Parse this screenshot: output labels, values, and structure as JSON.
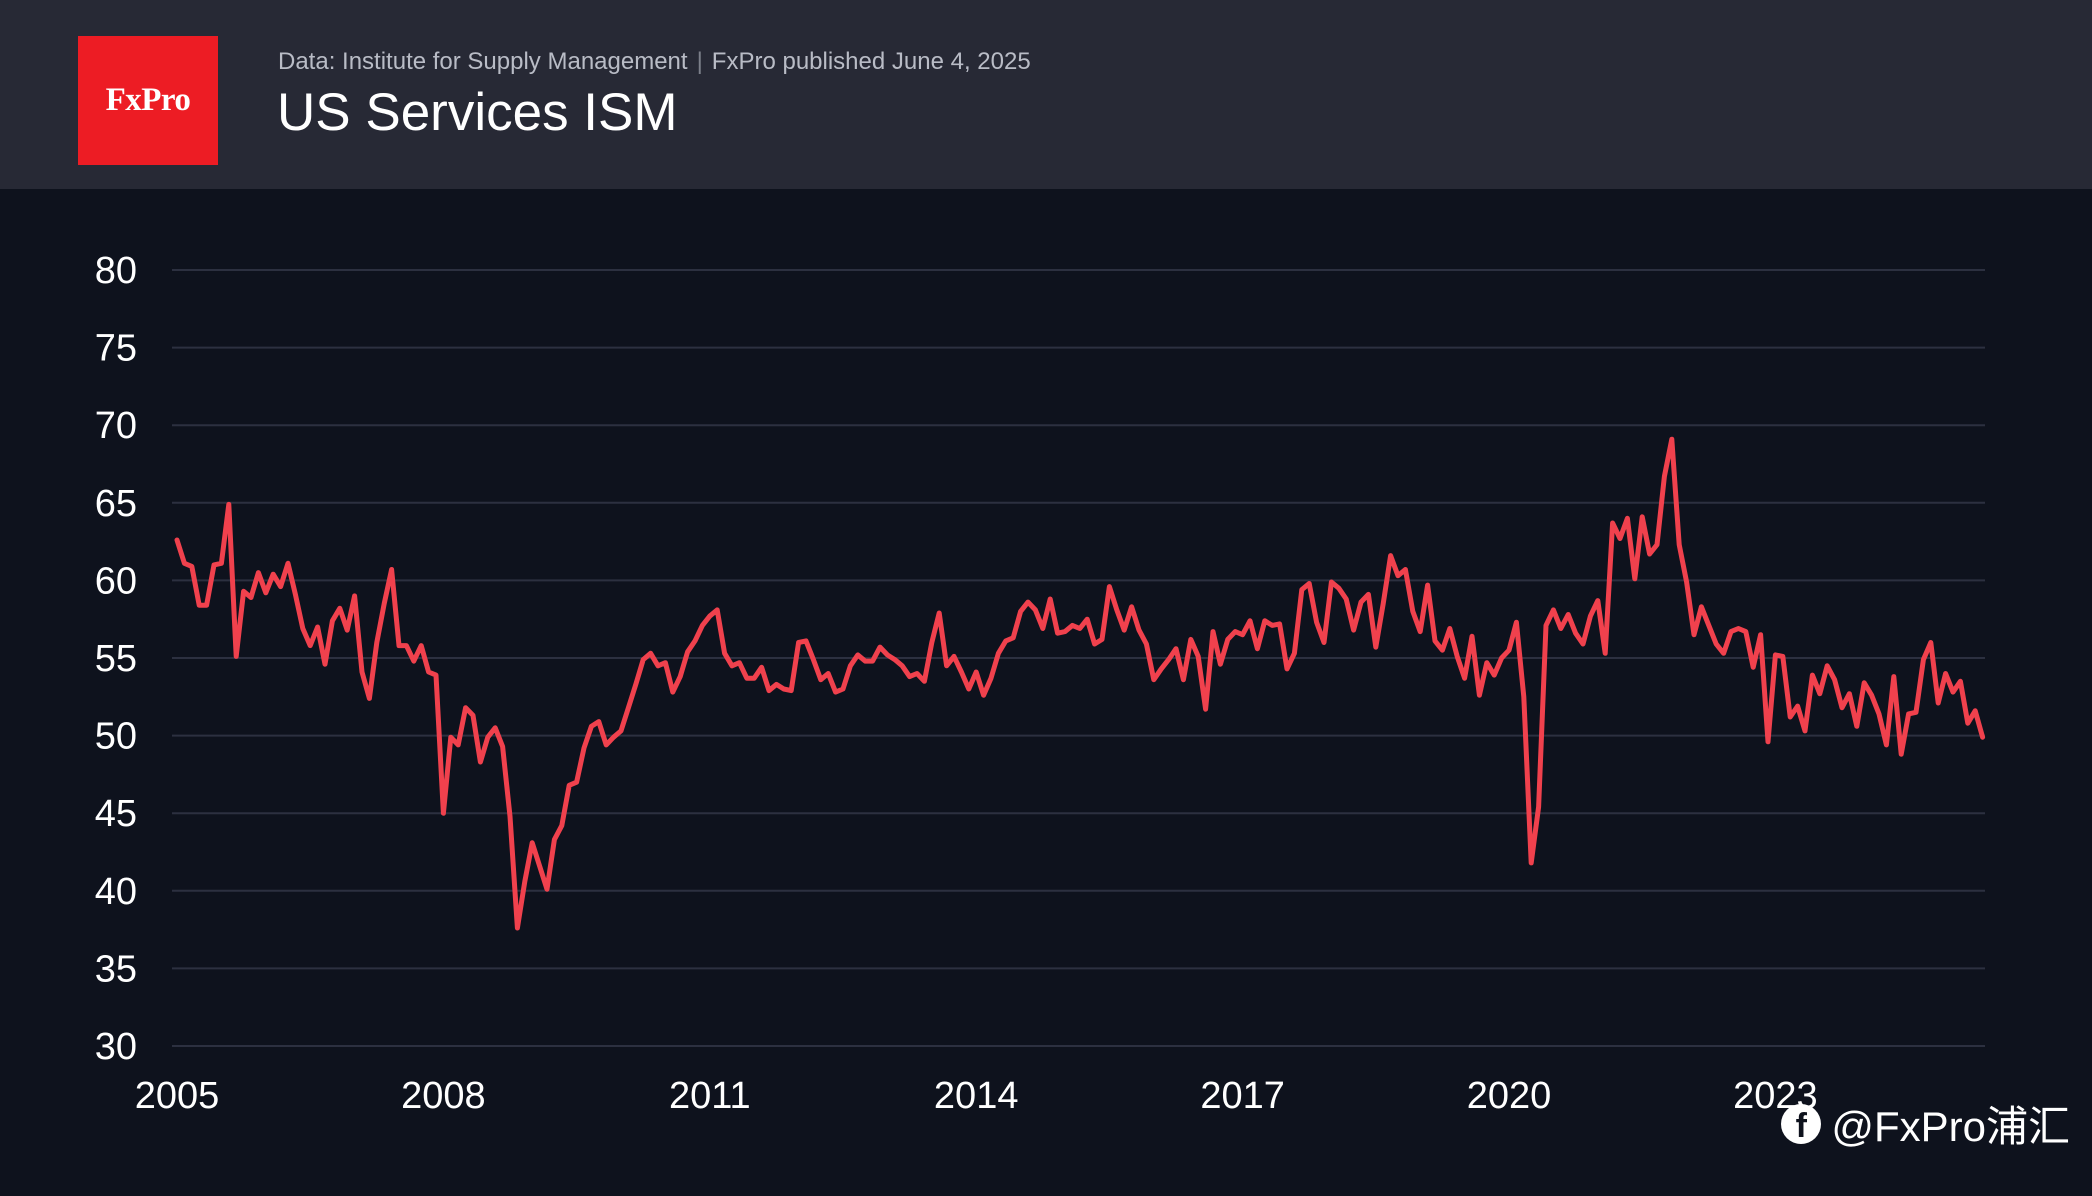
{
  "header": {
    "logo_text": "FxPro",
    "source": "Data: Institute for Supply Management",
    "published": "FxPro published June 4, 2025",
    "title": "US Services ISM"
  },
  "watermark": {
    "icon": "facebook-icon",
    "text": "@FxPro浦汇"
  },
  "colors": {
    "background": "#0e121d",
    "header_background": "#272935",
    "brand_red": "#ed1c24",
    "series": "#f0414d",
    "grid": "#2c3040",
    "tick_text": "#ffffff"
  },
  "chart_data": {
    "type": "line",
    "title": "US Services ISM",
    "xlabel": "",
    "ylabel": "",
    "ylim": [
      30,
      80
    ],
    "yticks": [
      30,
      35,
      40,
      45,
      50,
      55,
      60,
      65,
      70,
      75,
      80
    ],
    "xticks": [
      "2005",
      "2008",
      "2011",
      "2014",
      "2017",
      "2020",
      "2023"
    ],
    "xlim": [
      "2005-01",
      "2025-05"
    ],
    "grid": "horizontal",
    "legend": "none",
    "series": [
      {
        "start": "2005-01",
        "frequency": "monthly",
        "values": [
          62.6,
          61.1,
          60.9,
          58.4,
          58.4,
          61.0,
          61.1,
          64.9,
          55.1,
          59.3,
          58.9,
          60.5,
          59.2,
          60.4,
          59.6,
          61.1,
          59.1,
          56.9,
          55.8,
          57.0,
          54.6,
          57.4,
          58.2,
          56.8,
          59.0,
          54.1,
          52.4,
          56.0,
          58.5,
          60.7,
          55.8,
          55.8,
          54.8,
          55.8,
          54.1,
          53.9,
          45.0,
          49.9,
          49.4,
          51.8,
          51.3,
          48.3,
          49.9,
          50.5,
          49.3,
          44.8,
          37.6,
          40.6,
          43.1,
          41.6,
          40.1,
          43.3,
          44.2,
          46.8,
          47.0,
          49.2,
          50.6,
          50.9,
          49.4,
          49.9,
          50.3,
          51.8,
          53.3,
          54.9,
          55.3,
          54.5,
          54.7,
          52.8,
          53.8,
          55.4,
          56.1,
          57.1,
          57.7,
          58.1,
          55.3,
          54.5,
          54.7,
          53.7,
          53.7,
          54.4,
          52.9,
          53.3,
          53.0,
          52.9,
          56.0,
          56.1,
          54.9,
          53.6,
          54.0,
          52.8,
          53.0,
          54.5,
          55.2,
          54.8,
          54.8,
          55.7,
          55.2,
          54.9,
          54.5,
          53.8,
          54.0,
          53.5,
          56.0,
          57.9,
          54.5,
          55.1,
          54.1,
          53.0,
          54.1,
          52.6,
          53.7,
          55.3,
          56.1,
          56.3,
          58.0,
          58.6,
          58.1,
          56.9,
          58.8,
          56.6,
          56.7,
          57.1,
          56.9,
          57.5,
          55.9,
          56.2,
          59.6,
          58.1,
          56.8,
          58.3,
          56.8,
          55.9,
          53.6,
          54.3,
          54.9,
          55.6,
          53.6,
          56.2,
          55.1,
          51.7,
          56.7,
          54.6,
          56.2,
          56.7,
          56.5,
          57.4,
          55.6,
          57.4,
          57.1,
          57.2,
          54.3,
          55.3,
          59.4,
          59.8,
          57.3,
          56.0,
          59.9,
          59.5,
          58.8,
          56.8,
          58.6,
          59.1,
          55.7,
          58.5,
          61.6,
          60.3,
          60.7,
          58.0,
          56.7,
          59.7,
          56.1,
          55.5,
          56.9,
          55.1,
          53.7,
          56.4,
          52.6,
          54.7,
          53.9,
          55.0,
          55.5,
          57.3,
          52.5,
          41.8,
          45.4,
          57.1,
          58.1,
          56.9,
          57.8,
          56.6,
          55.9,
          57.7,
          58.7,
          55.3,
          63.7,
          62.7,
          64.0,
          60.1,
          64.1,
          61.7,
          62.3,
          66.7,
          69.1,
          62.3,
          59.9,
          56.5,
          58.3,
          57.1,
          55.9,
          55.3,
          56.7,
          56.9,
          56.7,
          54.4,
          56.5,
          49.6,
          55.2,
          55.1,
          51.2,
          51.9,
          50.3,
          53.9,
          52.7,
          54.5,
          53.6,
          51.8,
          52.7,
          50.6,
          53.4,
          52.6,
          51.4,
          49.4,
          53.8,
          48.8,
          51.4,
          51.5,
          54.9,
          56.0,
          52.1,
          54.0,
          52.8,
          53.5,
          50.8,
          51.6,
          49.9
        ]
      }
    ]
  }
}
